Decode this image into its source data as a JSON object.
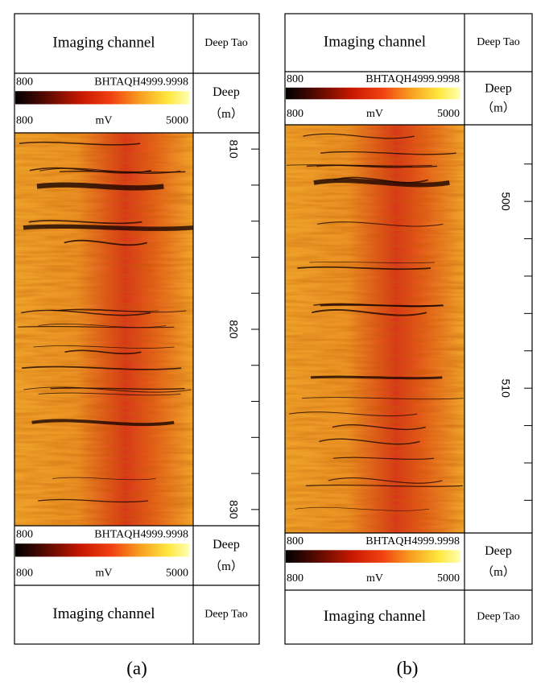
{
  "panels": [
    {
      "caption": "(a)",
      "header": {
        "channel": "Imaging channel",
        "depth": "Deep Tao"
      },
      "top_scale": {
        "name": "BHTAQH4999.9998",
        "upper_min": 800,
        "min": 800,
        "unit": "mV",
        "max": 5000,
        "depth_label": "Deep",
        "depth_unit": "（m）"
      },
      "image": {
        "ylim": [
          809.1,
          830.9
        ],
        "ticks": [
          810,
          820,
          830
        ],
        "minor_ticks": [
          812,
          814,
          816,
          818,
          822,
          824,
          826,
          828
        ]
      },
      "bottom_scale": {
        "name": "BHTAQH4999.9998",
        "upper_min": 800,
        "min": 800,
        "unit": "mV",
        "max": 5000,
        "depth_label": "Deep",
        "depth_unit": "（m）"
      },
      "footer": {
        "channel": "Imaging channel",
        "depth": "Deep Tao"
      }
    },
    {
      "caption": "(b)",
      "header": {
        "channel": "Imaging channel",
        "depth": "Deep Tao"
      },
      "top_scale": {
        "name": "BHTAQH4999.9998",
        "upper_min": 800,
        "min": 800,
        "unit": "mV",
        "max": 5000,
        "depth_label": "Deep",
        "depth_unit": "（m）"
      },
      "image": {
        "ylim": [
          495.9,
          517.75
        ],
        "ticks": [
          500,
          510
        ],
        "minor_ticks": [
          498,
          502,
          504,
          506,
          508,
          512,
          514,
          516
        ]
      },
      "bottom_scale": {
        "name": "BHTAQH4999.9998",
        "upper_min": 800,
        "min": 800,
        "unit": "mV",
        "max": 5000,
        "depth_label": "Deep",
        "depth_unit": "（m）"
      },
      "footer": {
        "channel": "Imaging channel",
        "depth": "Deep Tao"
      }
    }
  ]
}
